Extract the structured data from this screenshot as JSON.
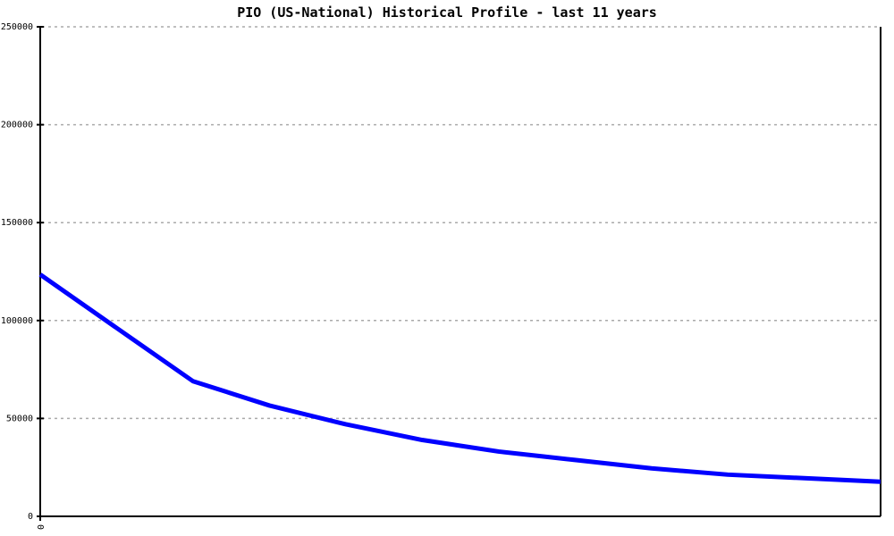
{
  "page": {
    "background": "#ffffff"
  },
  "chart_data": {
    "type": "line",
    "title": "PIO (US-National) Historical Profile - last 11 years",
    "xlabel": "",
    "ylabel": "",
    "x": [
      0,
      1,
      2,
      3,
      4,
      5,
      6,
      7,
      8,
      9,
      10,
      11
    ],
    "series": [
      {
        "name": "PIO (US-National)",
        "values": [
          123500,
          96200,
          69000,
          56600,
          47000,
          39000,
          33100,
          28800,
          24500,
          21300,
          19500,
          17700
        ]
      }
    ],
    "xlim": [
      0,
      11
    ],
    "ylim": [
      0,
      250000
    ],
    "yticks": [
      0,
      50000,
      100000,
      150000,
      200000,
      250000
    ],
    "ytick_labels": [
      "0",
      "50000",
      "100000",
      "150000",
      "200000",
      "250000"
    ],
    "xticks": [
      0
    ],
    "xtick_labels": [
      "0"
    ],
    "xtick_label_rotation_deg": 90,
    "grid": "horizontal-dotted",
    "legend": "none",
    "line_color": "#0000ff",
    "line_width": 5,
    "grid_color": "#aaaaaa",
    "axis_color": "#000000"
  }
}
